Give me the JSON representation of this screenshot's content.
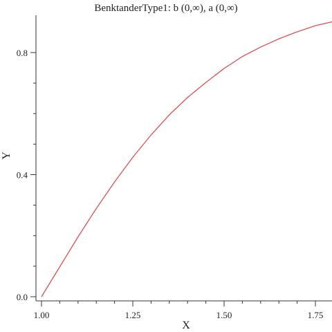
{
  "chart_data": {
    "type": "line",
    "title": "BenktanderType1: b     (0,∞), a     (0,∞)",
    "xlabel": "X",
    "ylabel": "Y",
    "xlim": [
      1.0,
      1.8
    ],
    "ylim": [
      0.0,
      0.92
    ],
    "x_ticks": [
      {
        "value": 1.0,
        "label": "1.00"
      },
      {
        "value": 1.25,
        "label": "1.25"
      },
      {
        "value": 1.5,
        "label": "1.50"
      },
      {
        "value": 1.75,
        "label": "1.75"
      }
    ],
    "x_minor_ticks": [
      1.05,
      1.1,
      1.15,
      1.2,
      1.3,
      1.35,
      1.4,
      1.45,
      1.55,
      1.6,
      1.65,
      1.7
    ],
    "y_ticks": [
      {
        "value": 0.0,
        "label": "0.0"
      },
      {
        "value": 0.4,
        "label": "0.4"
      },
      {
        "value": 0.8,
        "label": "0.8"
      }
    ],
    "y_minor_ticks": [
      0.1,
      0.2,
      0.3,
      0.5,
      0.6,
      0.7
    ],
    "grid": false,
    "series": [
      {
        "color": "#e05050",
        "x": [
          1.0,
          1.05,
          1.1,
          1.15,
          1.2,
          1.25,
          1.3,
          1.35,
          1.4,
          1.45,
          1.5,
          1.55,
          1.6,
          1.65,
          1.7,
          1.75,
          1.8
        ],
        "y": [
          0.0,
          0.098,
          0.196,
          0.289,
          0.376,
          0.457,
          0.53,
          0.596,
          0.653,
          0.702,
          0.748,
          0.787,
          0.818,
          0.845,
          0.868,
          0.888,
          0.902
        ]
      }
    ]
  }
}
